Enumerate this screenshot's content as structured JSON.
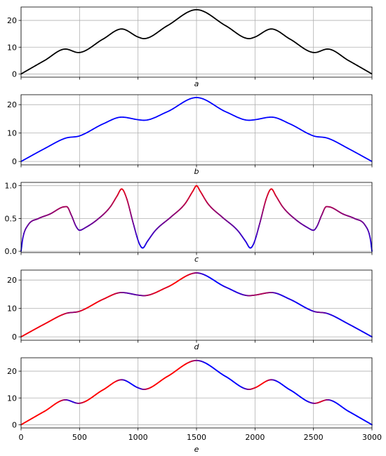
{
  "chart_data": [
    {
      "type": "line",
      "label": "a",
      "xlim": [
        0,
        3000
      ],
      "ylim": [
        -1.2,
        25
      ],
      "yticks": [
        0,
        10,
        20
      ],
      "ytick_labels": [
        "0",
        "10",
        "20"
      ],
      "xticks": [
        0,
        500,
        1000,
        1500,
        2000,
        2500,
        3000
      ],
      "grid": true,
      "color_mode": "solid",
      "color": "#000000",
      "x": [
        0,
        200,
        380,
        490,
        700,
        860,
        1000,
        1050,
        1250,
        1500,
        1750,
        1950,
        2000,
        2140,
        2300,
        2510,
        2620,
        2800,
        3000
      ],
      "y": [
        0,
        5,
        9.3,
        8.0,
        13,
        16.8,
        13.8,
        13.2,
        18,
        24,
        18,
        13.2,
        13.8,
        16.8,
        13,
        8.0,
        9.3,
        5,
        0
      ]
    },
    {
      "type": "line",
      "label": "b",
      "xlim": [
        0,
        3000
      ],
      "ylim": [
        -1.2,
        23.5
      ],
      "yticks": [
        0,
        10,
        20
      ],
      "ytick_labels": [
        "0",
        "10",
        "20"
      ],
      "xticks": [
        0,
        500,
        1000,
        1500,
        2000,
        2500,
        3000
      ],
      "grid": true,
      "color_mode": "solid",
      "color": "#0000ff",
      "x": [
        0,
        200,
        380,
        500,
        700,
        860,
        1000,
        1050,
        1250,
        1500,
        1750,
        1950,
        2000,
        2140,
        2300,
        2500,
        2620,
        2800,
        3000
      ],
      "y": [
        0,
        4.5,
        8.2,
        9.0,
        13.2,
        15.6,
        14.7,
        14.5,
        17.5,
        22.5,
        17.5,
        14.5,
        14.7,
        15.6,
        13.2,
        9.0,
        8.2,
        4.5,
        0
      ]
    },
    {
      "type": "line",
      "label": "c",
      "xlim": [
        0,
        3000
      ],
      "ylim": [
        -0.02,
        1.05
      ],
      "yticks": [
        0,
        0.5,
        1
      ],
      "ytick_labels": [
        "0.0",
        "0.5",
        "1.0"
      ],
      "xticks": [
        0,
        500,
        1000,
        1500,
        2000,
        2500,
        3000
      ],
      "grid": true,
      "color_mode": "value",
      "color_low": "#0000ff",
      "color_high": "#ff0000",
      "x": [
        0,
        15,
        60,
        150,
        250,
        350,
        390,
        430,
        470,
        500,
        550,
        650,
        760,
        820,
        860,
        900,
        960,
        1010,
        1040,
        1080,
        1150,
        1280,
        1400,
        1470,
        1500,
        1530,
        1600,
        1720,
        1850,
        1920,
        1960,
        1990,
        2040,
        2100,
        2140,
        2180,
        2240,
        2350,
        2450,
        2500,
        2530,
        2570,
        2610,
        2650,
        2750,
        2850,
        2940,
        2985,
        3000
      ],
      "y": [
        0,
        0.2,
        0.4,
        0.5,
        0.57,
        0.67,
        0.68,
        0.55,
        0.38,
        0.32,
        0.36,
        0.48,
        0.67,
        0.84,
        0.95,
        0.82,
        0.42,
        0.12,
        0.05,
        0.15,
        0.32,
        0.52,
        0.72,
        0.92,
        1.0,
        0.92,
        0.72,
        0.52,
        0.32,
        0.15,
        0.05,
        0.12,
        0.42,
        0.82,
        0.95,
        0.84,
        0.67,
        0.48,
        0.36,
        0.32,
        0.38,
        0.55,
        0.68,
        0.67,
        0.57,
        0.5,
        0.4,
        0.2,
        0
      ]
    },
    {
      "type": "line",
      "label": "d",
      "xlim": [
        0,
        3000
      ],
      "ylim": [
        -1.2,
        23.5
      ],
      "yticks": [
        0,
        10,
        20
      ],
      "ytick_labels": [
        "0",
        "10",
        "20"
      ],
      "xticks": [
        0,
        500,
        1000,
        1500,
        2000,
        2500,
        3000
      ],
      "grid": true,
      "color_mode": "slope",
      "color_low": "#0000ff",
      "color_high": "#ff0000",
      "x": [
        0,
        200,
        380,
        500,
        700,
        860,
        1000,
        1050,
        1250,
        1500,
        1750,
        1950,
        2000,
        2140,
        2300,
        2500,
        2620,
        2800,
        3000
      ],
      "y": [
        0,
        4.5,
        8.2,
        9.0,
        13.2,
        15.6,
        14.7,
        14.5,
        17.5,
        22.5,
        17.5,
        14.5,
        14.7,
        15.6,
        13.2,
        9.0,
        8.2,
        4.5,
        0
      ]
    },
    {
      "type": "line",
      "label": "e",
      "xlabel": "e",
      "xlim": [
        0,
        3000
      ],
      "ylim": [
        -1.2,
        25
      ],
      "yticks": [
        0,
        10,
        20
      ],
      "ytick_labels": [
        "0",
        "10",
        "20"
      ],
      "xticks": [
        0,
        500,
        1000,
        1500,
        2000,
        2500,
        3000
      ],
      "xtick_labels": [
        "0",
        "500",
        "1000",
        "1500",
        "2000",
        "2500",
        "3000"
      ],
      "grid": true,
      "color_mode": "slope",
      "color_low": "#0000ff",
      "color_high": "#ff0000",
      "x": [
        0,
        200,
        380,
        490,
        700,
        860,
        1000,
        1050,
        1250,
        1500,
        1750,
        1950,
        2000,
        2140,
        2300,
        2510,
        2620,
        2800,
        3000
      ],
      "y": [
        0,
        5,
        9.3,
        8.0,
        13,
        16.8,
        13.8,
        13.2,
        18,
        24,
        18,
        13.2,
        13.8,
        16.8,
        13,
        8.0,
        9.3,
        5,
        0
      ]
    }
  ]
}
